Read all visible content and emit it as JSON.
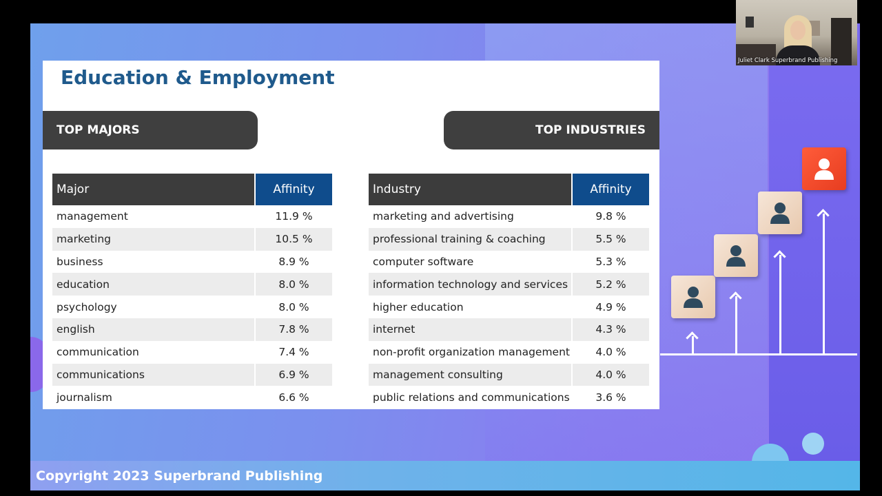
{
  "slide": {
    "title": "Education & Employment",
    "footer": "Copyright 2023 Superbrand Publishing",
    "sections": {
      "left_label": "TOP MAJORS",
      "right_label": "TOP INDUSTRIES"
    },
    "majors_table": {
      "headers": [
        "Major",
        "Affinity"
      ],
      "rows": [
        [
          "management",
          "11.9 %"
        ],
        [
          "marketing",
          "10.5 %"
        ],
        [
          "business",
          "8.9 %"
        ],
        [
          "education",
          "8.0 %"
        ],
        [
          "psychology",
          "8.0 %"
        ],
        [
          "english",
          "7.8 %"
        ],
        [
          "communication",
          "7.4 %"
        ],
        [
          "communications",
          "6.9 %"
        ],
        [
          "journalism",
          "6.6 %"
        ]
      ]
    },
    "industries_table": {
      "headers": [
        "Industry",
        "Affinity"
      ],
      "rows": [
        [
          "marketing and advertising",
          "9.8 %"
        ],
        [
          "professional training & coaching",
          "5.5 %"
        ],
        [
          "computer software",
          "5.3 %"
        ],
        [
          "information technology and services",
          "5.2 %"
        ],
        [
          "higher education",
          "4.9 %"
        ],
        [
          "internet",
          "4.3 %"
        ],
        [
          "non-profit organization management",
          "4.0 %"
        ],
        [
          "management consulting",
          "4.0 %"
        ],
        [
          "public relations and communications",
          "3.6 %"
        ]
      ]
    },
    "colors": {
      "title": "#1f5a8c",
      "affinity_header": "#0f4c8c",
      "dark_header": "#3c3c3c",
      "highlight_block": "#e73d20"
    },
    "illustration_icons": [
      "person-icon",
      "person-icon",
      "person-icon",
      "person-icon"
    ]
  },
  "webcam": {
    "participant_name": "Juliet Clark Superbrand Publishing"
  }
}
